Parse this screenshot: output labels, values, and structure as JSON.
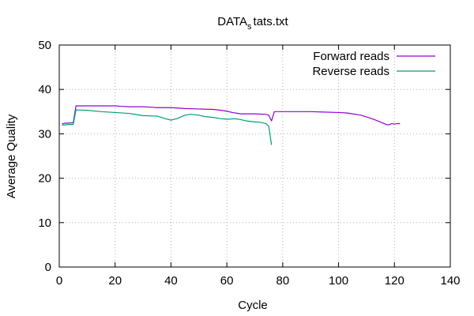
{
  "chart_data": {
    "type": "line",
    "title": "DATA",
    "title_subscript": "s",
    "title_suffix": "tats.txt",
    "xlabel": "Cycle",
    "ylabel": "Average Quality",
    "xlim": [
      0,
      140
    ],
    "ylim": [
      0,
      50
    ],
    "xticks": [
      0,
      20,
      40,
      60,
      80,
      100,
      120,
      140
    ],
    "yticks": [
      0,
      10,
      20,
      30,
      40,
      50
    ],
    "grid": true,
    "legend_position": "top-right",
    "series": [
      {
        "name": "Forward reads",
        "color": "#9400d3",
        "points": [
          [
            1,
            32.2
          ],
          [
            2,
            32.4
          ],
          [
            3,
            32.4
          ],
          [
            5,
            32.5
          ],
          [
            6,
            36.3
          ],
          [
            10,
            36.3
          ],
          [
            15,
            36.3
          ],
          [
            20,
            36.3
          ],
          [
            22,
            36.2
          ],
          [
            25,
            36.1
          ],
          [
            30,
            36.1
          ],
          [
            33,
            36.0
          ],
          [
            35,
            35.9
          ],
          [
            40,
            35.9
          ],
          [
            45,
            35.7
          ],
          [
            50,
            35.6
          ],
          [
            55,
            35.5
          ],
          [
            58,
            35.3
          ],
          [
            60,
            35.1
          ],
          [
            62,
            34.8
          ],
          [
            65,
            34.5
          ],
          [
            70,
            34.5
          ],
          [
            74,
            34.4
          ],
          [
            75,
            34.2
          ],
          [
            76,
            32.9
          ],
          [
            77,
            35.0
          ],
          [
            80,
            35.0
          ],
          [
            85,
            35.0
          ],
          [
            90,
            35.0
          ],
          [
            95,
            34.9
          ],
          [
            100,
            34.8
          ],
          [
            103,
            34.7
          ],
          [
            105,
            34.5
          ],
          [
            108,
            34.2
          ],
          [
            110,
            33.8
          ],
          [
            112,
            33.4
          ],
          [
            114,
            32.9
          ],
          [
            116,
            32.4
          ],
          [
            117,
            32.1
          ],
          [
            118,
            32.0
          ],
          [
            119,
            32.3
          ],
          [
            120,
            32.2
          ],
          [
            121,
            32.3
          ],
          [
            122,
            32.3
          ]
        ]
      },
      {
        "name": "Reverse reads",
        "color": "#009e73",
        "points": [
          [
            1,
            32.0
          ],
          [
            2,
            32.0
          ],
          [
            3,
            32.1
          ],
          [
            5,
            32.1
          ],
          [
            6,
            35.4
          ],
          [
            10,
            35.3
          ],
          [
            15,
            35.0
          ],
          [
            20,
            34.8
          ],
          [
            25,
            34.6
          ],
          [
            28,
            34.3
          ],
          [
            30,
            34.1
          ],
          [
            35,
            34.0
          ],
          [
            38,
            33.4
          ],
          [
            40,
            33.1
          ],
          [
            42,
            33.4
          ],
          [
            45,
            34.2
          ],
          [
            47,
            34.4
          ],
          [
            50,
            34.2
          ],
          [
            52,
            33.9
          ],
          [
            55,
            33.7
          ],
          [
            58,
            33.4
          ],
          [
            60,
            33.3
          ],
          [
            63,
            33.4
          ],
          [
            65,
            33.2
          ],
          [
            67,
            32.9
          ],
          [
            70,
            32.7
          ],
          [
            72,
            32.6
          ],
          [
            74,
            32.3
          ],
          [
            75,
            31.7
          ],
          [
            76,
            27.5
          ]
        ]
      }
    ]
  }
}
